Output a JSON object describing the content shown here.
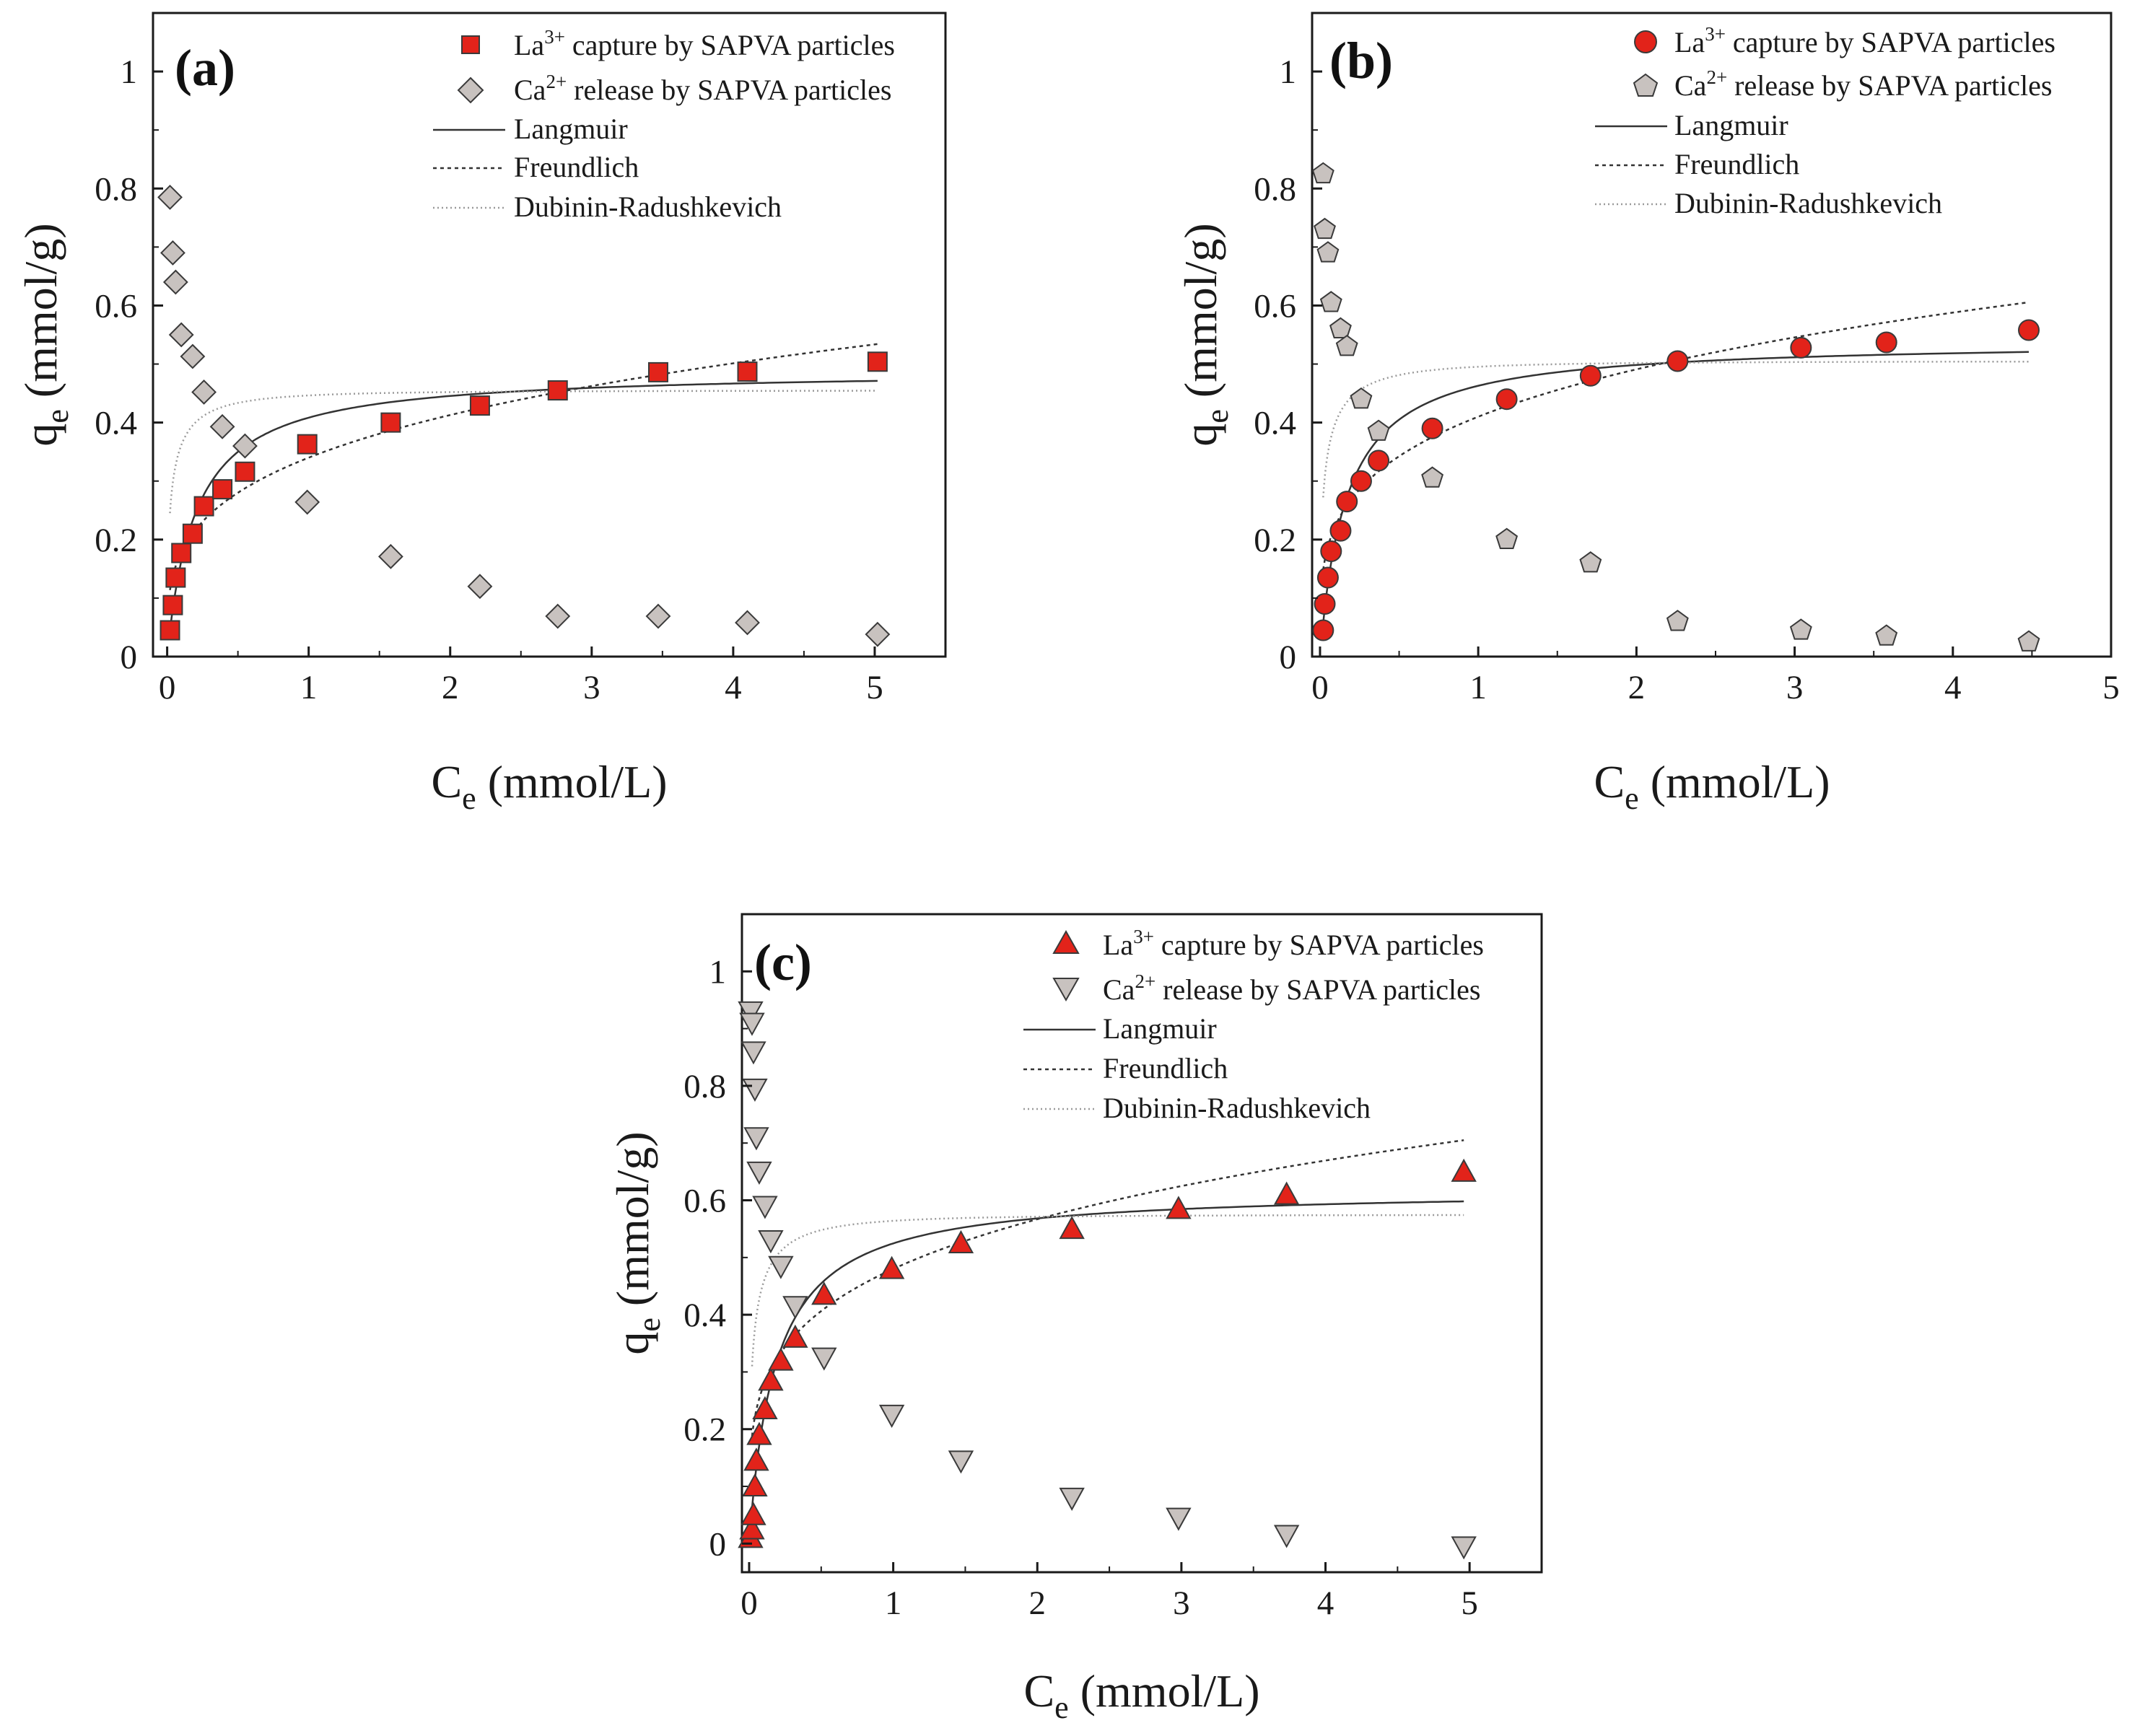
{
  "chart_data": [
    {
      "type": "scatter",
      "panel_label": "(a)",
      "xlabel_main": "C",
      "xlabel_sub": "e",
      "xlabel_unit": " (mmol/L)",
      "ylabel_main": "q",
      "ylabel_sub": "e",
      "ylabel_unit": " (mmol/g)",
      "xlim": [
        -0.1,
        5.5
      ],
      "ylim": [
        0,
        1.1
      ],
      "xticks": [
        0,
        1,
        2,
        3,
        4,
        5
      ],
      "yticks": [
        0,
        0.2,
        0.4,
        0.6,
        0.8,
        1
      ],
      "ytick_labels": [
        "0",
        "0.2",
        "0.4",
        "0.6",
        "0.8",
        "1"
      ],
      "series": [
        {
          "name": "La3+ capture by SAPVA particles",
          "legend_prefix": "La",
          "legend_sup": "3+",
          "legend_suffix": " capture by SAPVA particles",
          "marker": "square",
          "color": "#e2231a",
          "x": [
            0.02,
            0.04,
            0.06,
            0.1,
            0.18,
            0.26,
            0.39,
            0.55,
            0.99,
            1.58,
            2.21,
            2.76,
            3.47,
            4.1,
            5.02
          ],
          "y": [
            0.045,
            0.088,
            0.135,
            0.177,
            0.21,
            0.257,
            0.286,
            0.316,
            0.363,
            0.4,
            0.429,
            0.455,
            0.486,
            0.487,
            0.504
          ]
        },
        {
          "name": "Ca2+ release by SAPVA particles",
          "legend_prefix": "Ca",
          "legend_sup": "2+",
          "legend_suffix": " release by SAPVA particles",
          "marker": "diamond",
          "color": "#c8c2bf",
          "x": [
            0.02,
            0.04,
            0.06,
            0.1,
            0.18,
            0.26,
            0.39,
            0.55,
            0.99,
            1.58,
            2.21,
            2.76,
            3.47,
            4.1,
            5.02
          ],
          "y": [
            0.785,
            0.69,
            0.64,
            0.55,
            0.513,
            0.452,
            0.393,
            0.36,
            0.264,
            0.171,
            0.12,
            0.069,
            0.069,
            0.058,
            0.038
          ]
        }
      ],
      "fits": [
        {
          "name": "Langmuir",
          "model": "langmuir",
          "qm": 0.49,
          "K": 5.0,
          "x_max": 5.02
        },
        {
          "name": "Freundlich",
          "model": "freundlich",
          "Kf": 0.34,
          "inv_n": 0.28,
          "x_max": 5.02
        },
        {
          "name": "Dubinin-Radushkevich",
          "model": "dr",
          "qm": 0.455,
          "beta": 0.04,
          "x_max": 5.02
        }
      ]
    },
    {
      "type": "scatter",
      "panel_label": "(b)",
      "xlabel_main": "C",
      "xlabel_sub": "e",
      "xlabel_unit": " (mmol/L)",
      "ylabel_main": "q",
      "ylabel_sub": "e",
      "ylabel_unit": " (mmol/g)",
      "xlim": [
        -0.05,
        5
      ],
      "ylim": [
        0,
        1.1
      ],
      "xticks": [
        0,
        1,
        2,
        3,
        4,
        5
      ],
      "yticks": [
        0,
        0.2,
        0.4,
        0.6,
        0.8,
        1
      ],
      "ytick_labels": [
        "0",
        "0.2",
        "0.4",
        "0.6",
        "0.8",
        "1"
      ],
      "series": [
        {
          "name": "La3+ capture by SAPVA particles",
          "legend_prefix": "La",
          "legend_sup": "3+",
          "legend_suffix": " capture by SAPVA particles",
          "marker": "circle",
          "color": "#e2231a",
          "x": [
            0.02,
            0.03,
            0.05,
            0.07,
            0.13,
            0.17,
            0.26,
            0.37,
            0.71,
            1.18,
            1.71,
            2.26,
            3.04,
            3.58,
            4.48
          ],
          "y": [
            0.045,
            0.09,
            0.135,
            0.18,
            0.215,
            0.265,
            0.3,
            0.335,
            0.39,
            0.44,
            0.48,
            0.505,
            0.528,
            0.537,
            0.558
          ]
        },
        {
          "name": "Ca2+ release by SAPVA particles",
          "legend_prefix": "Ca",
          "legend_sup": "2+",
          "legend_suffix": " release by SAPVA particles",
          "marker": "pentagon",
          "color": "#c8c2bf",
          "x": [
            0.02,
            0.03,
            0.05,
            0.07,
            0.13,
            0.17,
            0.26,
            0.37,
            0.71,
            1.18,
            1.71,
            2.26,
            3.04,
            3.58,
            4.48
          ],
          "y": [
            0.825,
            0.73,
            0.69,
            0.605,
            0.56,
            0.53,
            0.44,
            0.385,
            0.305,
            0.2,
            0.16,
            0.06,
            0.045,
            0.035,
            0.025
          ]
        }
      ],
      "fits": [
        {
          "name": "Langmuir",
          "model": "langmuir",
          "qm": 0.54,
          "K": 6.0,
          "x_max": 4.48
        },
        {
          "name": "Freundlich",
          "model": "freundlich",
          "Kf": 0.41,
          "inv_n": 0.26,
          "x_max": 4.48
        },
        {
          "name": "Dubinin-Radushkevich",
          "model": "dr",
          "qm": 0.505,
          "beta": 0.04,
          "x_max": 4.48
        }
      ]
    },
    {
      "type": "scatter",
      "panel_label": "(c)",
      "xlabel_main": "C",
      "xlabel_sub": "e",
      "xlabel_unit": " (mmol/L)",
      "ylabel_main": "q",
      "ylabel_sub": "e",
      "ylabel_unit": " (mmol/g)",
      "xlim": [
        -0.05,
        5.5
      ],
      "ylim": [
        -0.05,
        1.1
      ],
      "xticks": [
        0,
        1,
        2,
        3,
        4,
        5
      ],
      "yticks": [
        0,
        0.2,
        0.4,
        0.6,
        0.8,
        1
      ],
      "ytick_labels": [
        "0",
        "0.2",
        "0.4",
        "0.6",
        "0.8",
        "1"
      ],
      "series": [
        {
          "name": "La3+ capture by SAPVA particles",
          "legend_prefix": "La",
          "legend_sup": "3+",
          "legend_suffix": " capture by SAPVA particles",
          "marker": "triangle-up",
          "color": "#e2231a",
          "x": [
            0.01,
            0.02,
            0.03,
            0.04,
            0.05,
            0.07,
            0.11,
            0.15,
            0.22,
            0.32,
            0.52,
            0.99,
            1.47,
            2.24,
            2.98,
            3.73,
            4.96
          ],
          "y": [
            0.01,
            0.025,
            0.05,
            0.1,
            0.145,
            0.19,
            0.235,
            0.285,
            0.32,
            0.36,
            0.435,
            0.48,
            0.525,
            0.55,
            0.585,
            0.61,
            0.65
          ]
        },
        {
          "name": "Ca2+ release by SAPVA particles",
          "legend_prefix": "Ca",
          "legend_sup": "2+",
          "legend_suffix": " release by SAPVA particles",
          "marker": "triangle-down",
          "color": "#c8c2bf",
          "x": [
            0.01,
            0.02,
            0.03,
            0.04,
            0.05,
            0.07,
            0.11,
            0.15,
            0.22,
            0.32,
            0.52,
            0.99,
            1.47,
            2.24,
            2.98,
            3.73,
            4.96
          ],
          "y": [
            0.93,
            0.91,
            0.86,
            0.795,
            0.71,
            0.65,
            0.59,
            0.53,
            0.485,
            0.415,
            0.325,
            0.225,
            0.145,
            0.08,
            0.045,
            0.015,
            -0.005
          ]
        }
      ],
      "fits": [
        {
          "name": "Langmuir",
          "model": "langmuir",
          "qm": 0.62,
          "K": 5.5,
          "x_max": 4.96
        },
        {
          "name": "Freundlich",
          "model": "freundlich",
          "Kf": 0.48,
          "inv_n": 0.24,
          "x_max": 4.96
        },
        {
          "name": "Dubinin-Radushkevich",
          "model": "dr",
          "qm": 0.575,
          "beta": 0.04,
          "x_max": 4.96
        }
      ]
    }
  ],
  "style": {
    "axis_color": "#1a1a1a",
    "marker_edge": "#3a3a3a",
    "fit_colors": {
      "langmuir": "#333333",
      "freundlich": "#333333",
      "dr": "#9a9a9a"
    }
  }
}
